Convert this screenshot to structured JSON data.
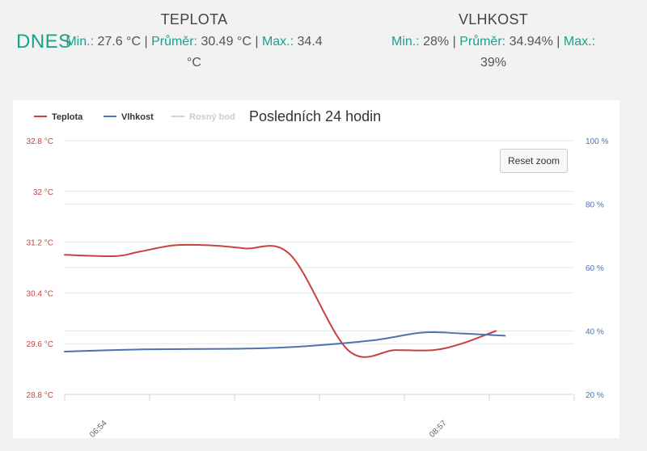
{
  "today_label": "DNES",
  "temperature": {
    "heading": "TEPLOTA",
    "min_label": "Min.:",
    "min_value": "27.6 °C",
    "avg_label": "Průměr:",
    "avg_value": "30.49 °C",
    "max_label": "Max.:",
    "max_value": "34.4",
    "max_unit": "°C"
  },
  "humidity": {
    "heading": "VLHKOST",
    "min_label": "Min.:",
    "min_value": "28%",
    "avg_label": "Průměr:",
    "avg_value": "34.94%",
    "max_label": "Max.:",
    "max_value": "39%"
  },
  "chart_data": {
    "type": "line",
    "title": "Posledních 24 hodin",
    "legend_position": "top-left",
    "reset_zoom_label": "Reset zoom",
    "x_tick_labels": [
      "06:54",
      "08:57"
    ],
    "x_range": [
      0,
      100
    ],
    "y_left": {
      "range": [
        28.8,
        32.8
      ],
      "ticks": [
        28.8,
        29.6,
        30.4,
        31.2,
        32,
        32.8
      ],
      "tick_labels": [
        "28.8 °C",
        "29.6 °C",
        "30.4 °C",
        "31.2 °C",
        "32 °C",
        "32.8 °C"
      ],
      "color": "#c8413f"
    },
    "y_right": {
      "range": [
        20,
        100
      ],
      "ticks": [
        20,
        40,
        60,
        80,
        100
      ],
      "tick_labels": [
        "20 %",
        "40 %",
        "60 %",
        "80 %",
        "100 %"
      ],
      "color": "#4d72ad"
    },
    "series": [
      {
        "name": "Teplota",
        "axis": "left",
        "color": "#c8413f",
        "visible": true,
        "points": [
          [
            0,
            31.0
          ],
          [
            9.9,
            30.98
          ],
          [
            14.7,
            31.05
          ],
          [
            21.5,
            31.15
          ],
          [
            28.5,
            31.15
          ],
          [
            35.4,
            31.1
          ],
          [
            44.3,
            31.0
          ],
          [
            55.6,
            29.5
          ],
          [
            64.9,
            29.5
          ],
          [
            72.4,
            29.5
          ],
          [
            77.9,
            29.6
          ],
          [
            84.6,
            29.8
          ]
        ]
      },
      {
        "name": "Vlhkost",
        "axis": "right",
        "color": "#4d72ad",
        "visible": true,
        "points": [
          [
            0,
            33.5
          ],
          [
            15.4,
            34.2
          ],
          [
            33.8,
            34.4
          ],
          [
            45.4,
            35.0
          ],
          [
            60.2,
            37.0
          ],
          [
            70.2,
            39.5
          ],
          [
            77.9,
            39.2
          ],
          [
            86.4,
            38.5
          ]
        ]
      },
      {
        "name": "Rosný bod",
        "axis": "left",
        "color": "#d3d3d3",
        "visible": false,
        "points": []
      }
    ]
  }
}
